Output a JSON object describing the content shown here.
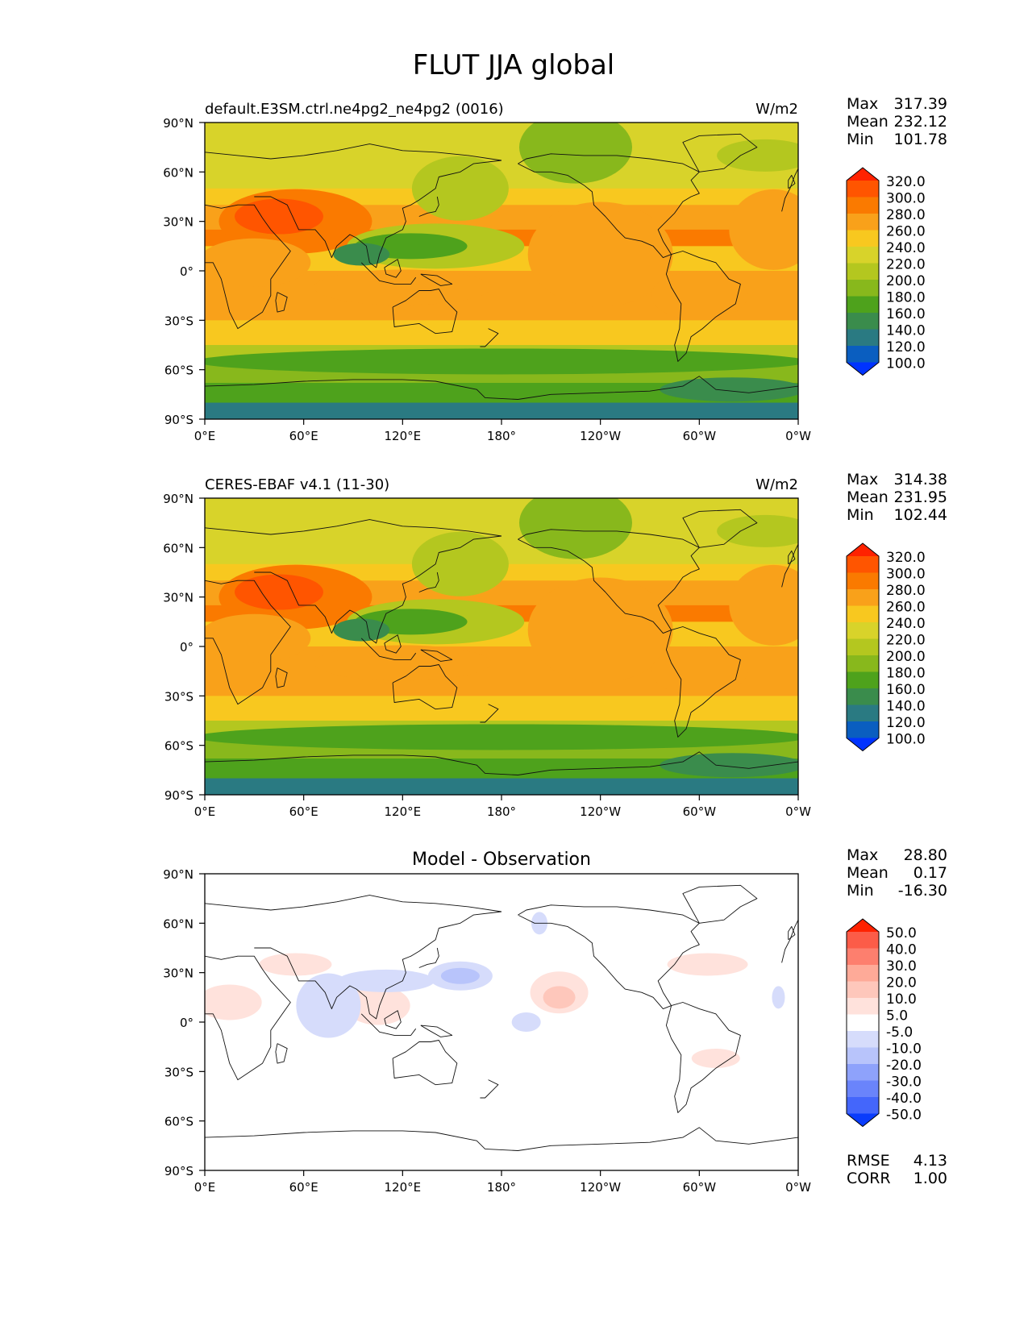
{
  "title": "FLUT JJA global",
  "panels": [
    {
      "id": "model",
      "title_left": "default.E3SM.ctrl.ne4pg2_ne4pg2 (0016)",
      "title_center": "",
      "units": "W/m2",
      "stats": [
        {
          "label": "Max",
          "value": "317.39"
        },
        {
          "label": "Mean",
          "value": "232.12"
        },
        {
          "label": "Min",
          "value": "101.78"
        }
      ],
      "colorbar": {
        "labels": [
          "320.0",
          "300.0",
          "280.0",
          "260.0",
          "240.0",
          "220.0",
          "200.0",
          "180.0",
          "160.0",
          "140.0",
          "120.0",
          "100.0"
        ],
        "colors": [
          "#ff2200",
          "#ff5500",
          "#fa7a00",
          "#f9a11a",
          "#f8c81f",
          "#d8d32a",
          "#b4c71f",
          "#88b81c",
          "#4ea21c",
          "#3a8c4c",
          "#2a7a82",
          "#0a5ec0",
          "#0033ff"
        ]
      },
      "extra_stats": []
    },
    {
      "id": "obs",
      "title_left": "CERES-EBAF v4.1 (11-30)",
      "title_center": "",
      "units": "W/m2",
      "stats": [
        {
          "label": "Max",
          "value": "314.38"
        },
        {
          "label": "Mean",
          "value": "231.95"
        },
        {
          "label": "Min",
          "value": "102.44"
        }
      ],
      "colorbar": {
        "labels": [
          "320.0",
          "300.0",
          "280.0",
          "260.0",
          "240.0",
          "220.0",
          "200.0",
          "180.0",
          "160.0",
          "140.0",
          "120.0",
          "100.0"
        ],
        "colors": [
          "#ff2200",
          "#ff5500",
          "#fa7a00",
          "#f9a11a",
          "#f8c81f",
          "#d8d32a",
          "#b4c71f",
          "#88b81c",
          "#4ea21c",
          "#3a8c4c",
          "#2a7a82",
          "#0a5ec0",
          "#0033ff"
        ]
      },
      "extra_stats": []
    },
    {
      "id": "diff",
      "title_left": "",
      "title_center": "Model - Observation",
      "units": "",
      "stats": [
        {
          "label": "Max",
          "value": "28.80"
        },
        {
          "label": "Mean",
          "value": "0.17"
        },
        {
          "label": "Min",
          "value": "-16.30"
        }
      ],
      "colorbar": {
        "labels": [
          "50.0",
          "40.0",
          "30.0",
          "20.0",
          "10.0",
          "5.0",
          "-5.0",
          "-10.0",
          "-20.0",
          "-30.0",
          "-40.0",
          "-50.0"
        ],
        "colors": [
          "#ff2200",
          "#fc5c48",
          "#fd7f6e",
          "#feaa98",
          "#fec7bb",
          "#ffe2dc",
          "#ffffff",
          "#d6dcfb",
          "#b8c4fb",
          "#8ea2fb",
          "#6a84fb",
          "#4466fb",
          "#0a3cfb"
        ]
      },
      "extra_stats": [
        {
          "label": "RMSE",
          "value": "4.13"
        },
        {
          "label": "CORR",
          "value": "1.00"
        }
      ]
    }
  ],
  "axes": {
    "lat_ticks": [
      "90°N",
      "60°N",
      "30°N",
      "0°",
      "30°S",
      "60°S",
      "90°S"
    ],
    "lon_ticks": [
      "0°E",
      "60°E",
      "120°E",
      "180°",
      "120°W",
      "60°W",
      "0°W"
    ]
  }
}
